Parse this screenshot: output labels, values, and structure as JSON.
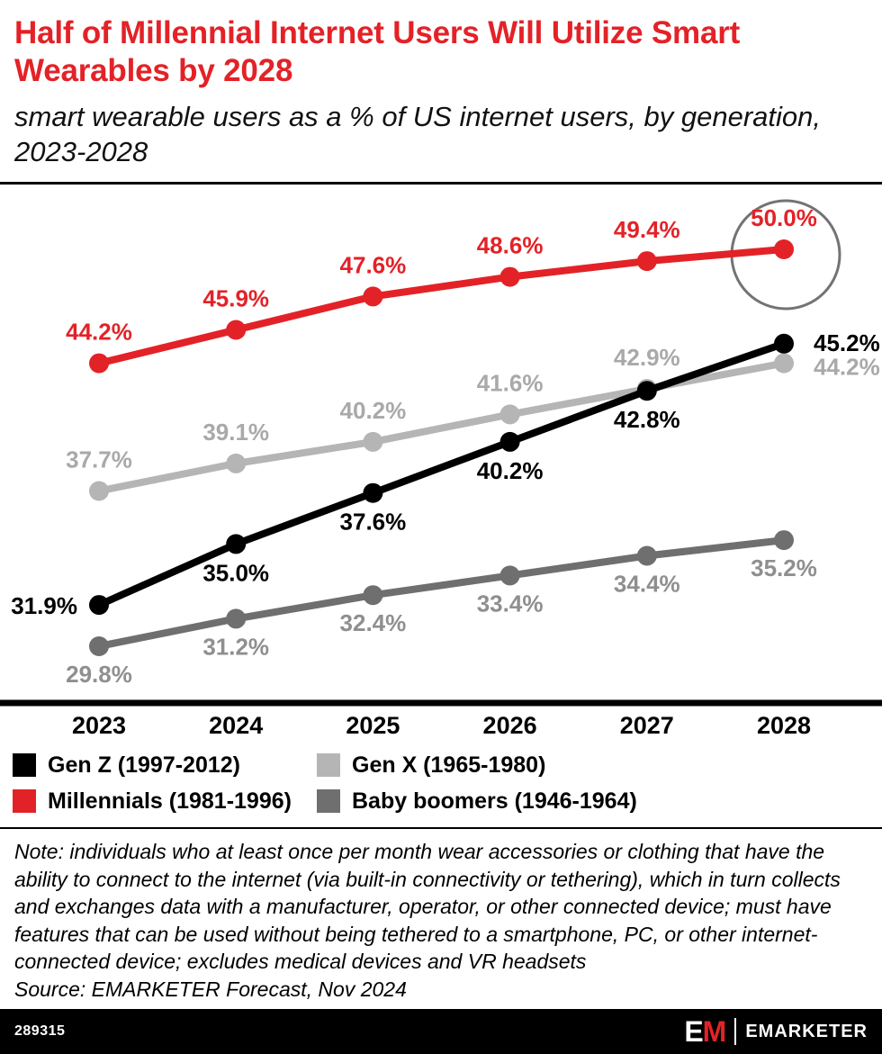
{
  "header": {
    "title": "Half of Millennial Internet Users Will Utilize Smart Wearables by 2028",
    "subtitle": "smart wearable users as a % of US internet users, by generation, 2023-2028"
  },
  "chart_data": {
    "type": "line",
    "title": "Half of Millennial Internet Users Will Utilize Smart Wearables by 2028",
    "subtitle": "smart wearable users as a % of US internet users, by generation, 2023-2028",
    "x": [
      "2023",
      "2024",
      "2025",
      "2026",
      "2027",
      "2028"
    ],
    "unit": "%",
    "ylim": [
      27,
      53
    ],
    "grid": false,
    "legend_position": "bottom",
    "series": [
      {
        "name": "Gen Z (1997-2012)",
        "color": "#000000",
        "label_color": "#000000",
        "values": [
          31.9,
          35.0,
          37.6,
          40.2,
          42.8,
          45.2
        ]
      },
      {
        "name": "Millennials (1981-1996)",
        "color": "#e32227",
        "label_color": "#e32227",
        "values": [
          44.2,
          45.9,
          47.6,
          48.6,
          49.4,
          50.0
        ]
      },
      {
        "name": "Gen X (1965-1980)",
        "color": "#b5b5b5",
        "label_color": "#a9a9a9",
        "values": [
          37.7,
          39.1,
          40.2,
          41.6,
          42.9,
          44.2
        ]
      },
      {
        "name": "Baby boomers (1946-1964)",
        "color": "#6f6f6f",
        "label_color": "#8f8f8f",
        "values": [
          29.8,
          31.2,
          32.4,
          33.4,
          34.4,
          35.2
        ]
      }
    ],
    "annotation": {
      "type": "circle",
      "series": "Millennials (1981-1996)",
      "x": "2028",
      "value": 50.0,
      "color": "#737373"
    }
  },
  "legend": {
    "items": [
      {
        "label": "Gen Z (1997-2012)",
        "color": "#000000"
      },
      {
        "label": "Gen X (1965-1980)",
        "color": "#b5b5b5"
      },
      {
        "label": "Millennials (1981-1996)",
        "color": "#e32227"
      },
      {
        "label": "Baby boomers (1946-1964)",
        "color": "#6f6f6f"
      }
    ]
  },
  "notes": {
    "note": "Note: individuals who at least once per month wear accessories or clothing that have the ability to connect to the internet (via built-in connectivity or tethering), which in turn collects and exchanges data with a manufacturer, operator, or other connected device; must have features that can be used without being tethered to a smartphone, PC, or other internet-connected device; excludes medical devices and VR headsets",
    "source": "Source: EMARKETER Forecast, Nov 2024"
  },
  "footer": {
    "chart_id": "289315",
    "logo_e": "E",
    "logo_m": "M",
    "brand": "EMARKETER"
  }
}
